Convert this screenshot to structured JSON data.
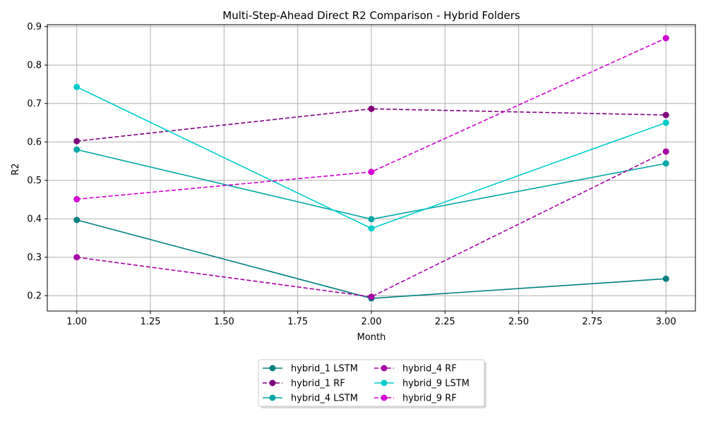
{
  "chart_data": {
    "type": "line",
    "title": "Multi-Step-Ahead Direct R2 Comparison - Hybrid Folders",
    "xlabel": "Month",
    "ylabel": "R2",
    "xlim": [
      0.9,
      3.1
    ],
    "ylim": [
      0.16,
      0.905
    ],
    "xticks": [
      1.0,
      1.25,
      1.5,
      1.75,
      2.0,
      2.25,
      2.5,
      2.75,
      3.0
    ],
    "xtick_labels": [
      "1.00",
      "1.25",
      "1.50",
      "1.75",
      "2.00",
      "2.25",
      "2.50",
      "2.75",
      "3.00"
    ],
    "yticks": [
      0.2,
      0.3,
      0.4,
      0.5,
      0.6,
      0.7,
      0.8,
      0.9
    ],
    "ytick_labels": [
      "0.2",
      "0.3",
      "0.4",
      "0.5",
      "0.6",
      "0.7",
      "0.8",
      "0.9"
    ],
    "grid": true,
    "legend_position": "bottom-center",
    "legend_columns": 2,
    "x": [
      1,
      2,
      3
    ],
    "series": [
      {
        "name": "hybrid_1 LSTM",
        "values": [
          0.397,
          0.193,
          0.244
        ],
        "color": "#008080",
        "dash": "solid",
        "legend_col": 0,
        "legend_row": 0
      },
      {
        "name": "hybrid_1 RF",
        "values": [
          0.602,
          0.686,
          0.67
        ],
        "color": "#800080",
        "dash": "dashed",
        "legend_col": 0,
        "legend_row": 1
      },
      {
        "name": "hybrid_4 LSTM",
        "values": [
          0.58,
          0.399,
          0.544
        ],
        "color": "#00a6a6",
        "dash": "solid",
        "legend_col": 0,
        "legend_row": 2
      },
      {
        "name": "hybrid_4 RF",
        "values": [
          0.3,
          0.197,
          0.575
        ],
        "color": "#a600a6",
        "dash": "dashed",
        "legend_col": 1,
        "legend_row": 0
      },
      {
        "name": "hybrid_9 LSTM",
        "values": [
          0.743,
          0.375,
          0.65
        ],
        "color": "#00cccc",
        "dash": "solid",
        "legend_col": 1,
        "legend_row": 1
      },
      {
        "name": "hybrid_9 RF",
        "values": [
          0.451,
          0.522,
          0.87
        ],
        "color": "#d400d4",
        "dash": "dashed",
        "legend_col": 1,
        "legend_row": 2
      }
    ]
  }
}
